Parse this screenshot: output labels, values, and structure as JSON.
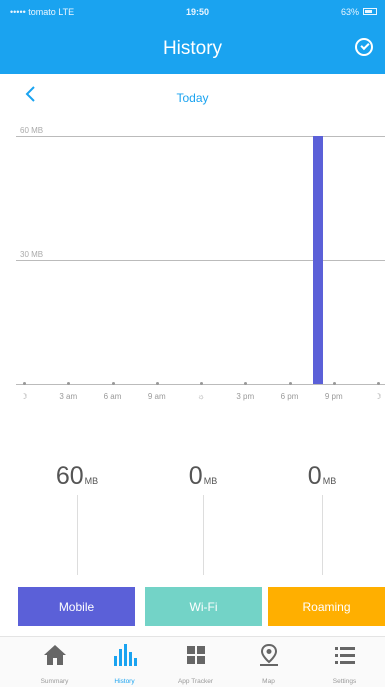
{
  "status_bar": {
    "carrier": "••••• tomato  LTE",
    "time": "19:50",
    "battery": "63%"
  },
  "header": {
    "title": "History",
    "right_icon": "clock-icon"
  },
  "date_nav": {
    "back_icon": "chevron-left-icon",
    "label": "Today"
  },
  "chart_data": {
    "type": "bar",
    "y_labels": [
      "60 MB",
      "30 MB"
    ],
    "ylim": [
      0,
      60
    ],
    "x_tick_labels": [
      "☽",
      "3 am",
      "6 am",
      "9 am",
      "☼",
      "3 pm",
      "6 pm",
      "9 pm",
      "☽"
    ],
    "hours": [
      0,
      3,
      6,
      9,
      12,
      15,
      18,
      21,
      24
    ],
    "bars": [
      {
        "hour": 19.9,
        "value": 60,
        "color": "#5b60d8"
      }
    ]
  },
  "totals": [
    {
      "value": "60",
      "unit": "MB"
    },
    {
      "value": "0",
      "unit": "MB"
    },
    {
      "value": "0",
      "unit": "MB"
    }
  ],
  "filters": [
    {
      "label": "Mobile",
      "color": "#5b60d8"
    },
    {
      "label": "Wi-Fi",
      "color": "#73d3c7"
    },
    {
      "label": "Roaming",
      "color": "#ffaf00"
    }
  ],
  "tabs": [
    {
      "label": "Summary",
      "icon": "home-icon",
      "active": false
    },
    {
      "label": "History",
      "icon": "bar-chart-icon",
      "active": true
    },
    {
      "label": "App Tracker",
      "icon": "grid-icon",
      "active": false
    },
    {
      "label": "Map",
      "icon": "map-pin-icon",
      "active": false
    },
    {
      "label": "Settings",
      "icon": "list-icon",
      "active": false
    }
  ],
  "colors": {
    "accent": "#1aa3f0",
    "mobile": "#5b60d8",
    "wifi": "#73d3c7",
    "roaming": "#ffaf00"
  }
}
